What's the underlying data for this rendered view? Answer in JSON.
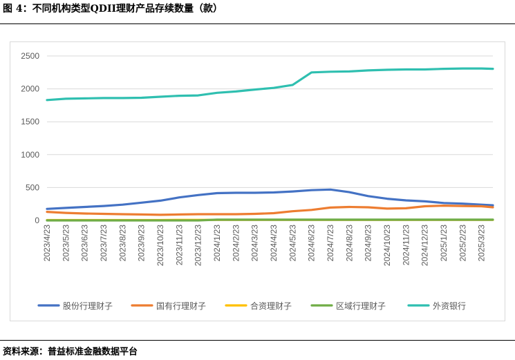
{
  "title": "图 4：不同机构类型QDII理财产品存续数量（款）",
  "source": "资料来源：普益标准金融数据平台",
  "chart_data": {
    "type": "line",
    "ylim": [
      0,
      2500
    ],
    "yticks": [
      "0",
      "500",
      "1000",
      "1500",
      "2000",
      "2500"
    ],
    "ytick_values": [
      0,
      500,
      1000,
      1500,
      2000,
      2500
    ],
    "grid": true,
    "legend_position": "bottom",
    "categories": [
      "2023/4/23",
      "2023/5/23",
      "2023/6/23",
      "2023/7/23",
      "2023/8/23",
      "2023/9/23",
      "2023/10/23",
      "2023/11/23",
      "2023/12/23",
      "2024/1/23",
      "2024/2/23",
      "2024/3/23",
      "2024/4/23",
      "2024/5/23",
      "2024/6/23",
      "2024/7/23",
      "2024/8/23",
      "2024/9/23",
      "2024/10/23",
      "2024/11/23",
      "2024/12/23",
      "2025/1/23",
      "2025/2/23",
      "2025/3/23"
    ],
    "x_extra_end": 0.6,
    "series": [
      {
        "name": "股份行理财子",
        "color": "#4472c4",
        "values": [
          175,
          190,
          205,
          220,
          240,
          270,
          300,
          350,
          385,
          415,
          420,
          420,
          425,
          440,
          460,
          470,
          430,
          370,
          330,
          305,
          290,
          265,
          255,
          240
        ],
        "end_value": 230
      },
      {
        "name": "国有行理财子",
        "color": "#ed7d31",
        "values": [
          130,
          115,
          105,
          100,
          95,
          90,
          85,
          90,
          95,
          95,
          95,
          100,
          110,
          140,
          160,
          195,
          205,
          200,
          180,
          185,
          215,
          225,
          220,
          215
        ],
        "end_value": 200
      },
      {
        "name": "合资理财子",
        "color": "#ffc000",
        "values": [
          5,
          5,
          5,
          5,
          5,
          5,
          5,
          8,
          8,
          8,
          8,
          8,
          8,
          8,
          8,
          8,
          8,
          8,
          8,
          8,
          8,
          8,
          8,
          8
        ],
        "end_value": 8
      },
      {
        "name": "区域行理财子",
        "color": "#70ad47",
        "values": [
          0,
          0,
          0,
          0,
          0,
          0,
          0,
          0,
          0,
          12,
          12,
          12,
          12,
          12,
          12,
          12,
          12,
          12,
          12,
          12,
          12,
          12,
          12,
          12
        ],
        "end_value": 12
      },
      {
        "name": "外资银行",
        "color": "#2fbfb0",
        "values": [
          1830,
          1850,
          1855,
          1860,
          1860,
          1865,
          1880,
          1895,
          1900,
          1940,
          1960,
          1990,
          2015,
          2060,
          2250,
          2260,
          2265,
          2280,
          2290,
          2295,
          2295,
          2305,
          2310,
          2310
        ],
        "end_value": 2305
      }
    ]
  }
}
